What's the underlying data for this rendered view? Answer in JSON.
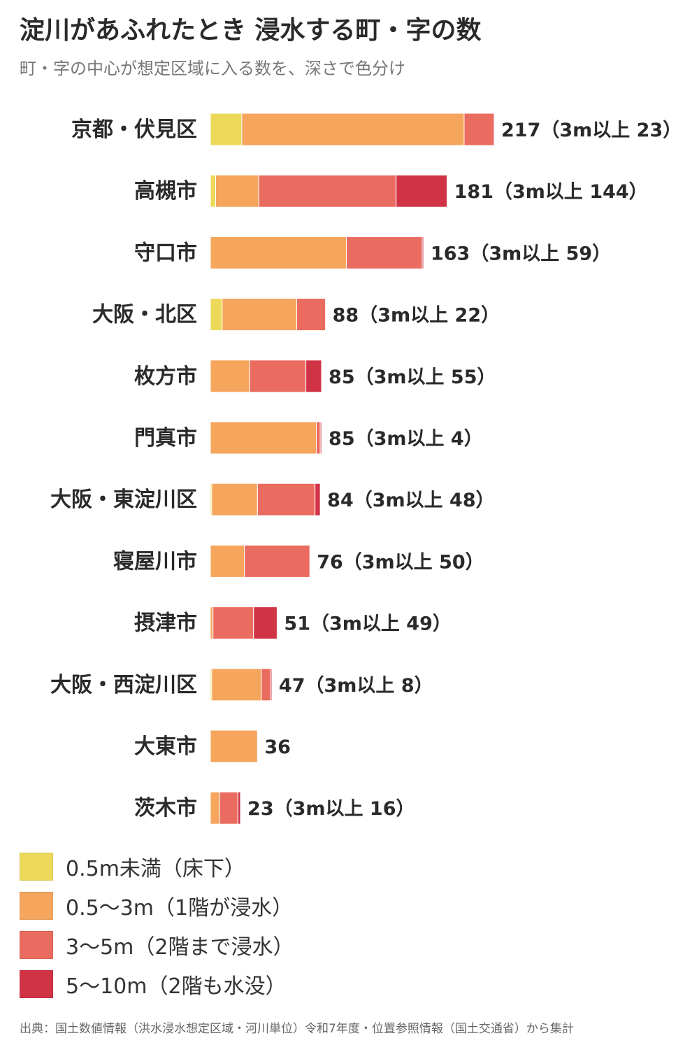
{
  "title": "淀川があふれたとき 浸水する町・字の数",
  "subtitle": "町・字の中心が想定区域に入る数を、深さで色分け",
  "source": "出典：国土数値情報（洪水浸水想定区域・河川単位）令和7年度・位置参照情報（国土交通省）から集計",
  "legend": [
    {
      "label": "0.5m未満（床下）",
      "color": "#ecd95a"
    },
    {
      "label": "0.5〜3m（1階が浸水）",
      "color": "#f5a55c"
    },
    {
      "label": "3〜5m（2階まで浸水）",
      "color": "#ea6b5f"
    },
    {
      "label": "5〜10m（2階も水没）",
      "color": "#d13346"
    }
  ],
  "chart_data": {
    "type": "bar",
    "orientation": "horizontal",
    "stacked": true,
    "categories": [
      "京都・伏見区",
      "高槻市",
      "守口市",
      "大阪・北区",
      "枚方市",
      "門真市",
      "大阪・東淀川区",
      "寝屋川市",
      "摂津市",
      "大阪・西淀川区",
      "大東市",
      "茨木市"
    ],
    "series": [
      {
        "name": "0.5m未満（床下）",
        "color": "#ecd95a",
        "values": [
          24,
          4,
          0,
          9,
          0,
          0,
          1,
          0,
          0,
          1,
          0,
          0
        ]
      },
      {
        "name": "0.5〜3m（1階が浸水）",
        "color": "#f5a55c",
        "values": [
          170,
          33,
          104,
          57,
          30,
          81,
          35,
          26,
          2,
          38,
          36,
          7
        ]
      },
      {
        "name": "3〜5m（2階まで浸水）",
        "color": "#ea6b5f",
        "values": [
          23,
          105,
          58,
          22,
          43,
          3,
          44,
          50,
          31,
          7,
          0,
          14
        ]
      },
      {
        "name": "5〜10m（2階も水没）",
        "color": "#d13346",
        "values": [
          0,
          39,
          1,
          0,
          12,
          1,
          4,
          0,
          18,
          1,
          0,
          2
        ]
      }
    ],
    "value_labels": [
      "217（3m以上 23）",
      "181（3m以上 144）",
      "163（3m以上 59）",
      "88（3m以上 22）",
      "85（3m以上 55）",
      "85（3m以上 4）",
      "84（3m以上 48）",
      "76（3m以上 50）",
      "51（3m以上 49）",
      "47（3m以上 8）",
      "36",
      "23（3m以上 16）"
    ],
    "totals": [
      217,
      181,
      163,
      88,
      85,
      85,
      84,
      76,
      51,
      47,
      36,
      23
    ]
  }
}
